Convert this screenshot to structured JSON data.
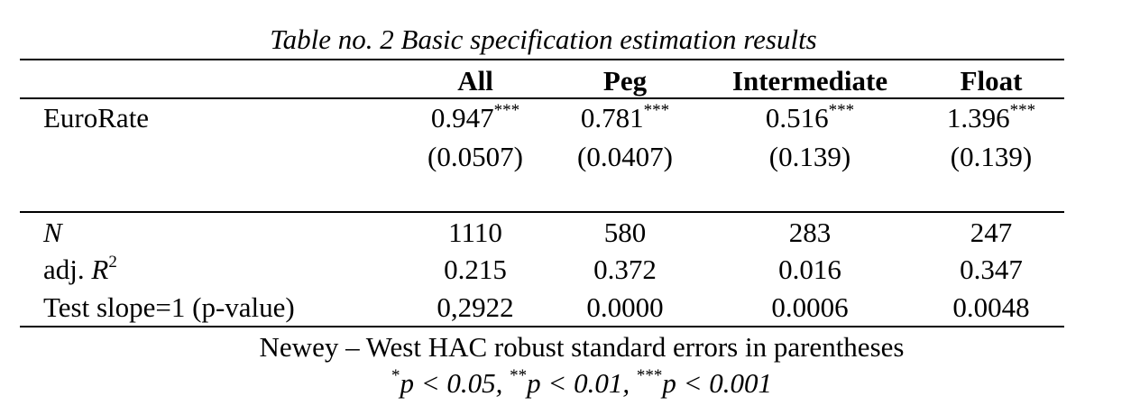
{
  "caption": {
    "table_no": "Table no. 2",
    "title": "Basic specification estimation results"
  },
  "columns": [
    "All",
    "Peg",
    "Intermediate",
    "Float"
  ],
  "rows": {
    "eurorate": {
      "label": "EuroRate",
      "coefs": [
        "0.947",
        "0.781",
        "0.516",
        "1.396"
      ],
      "stars": [
        "***",
        "***",
        "***",
        "***"
      ],
      "ses": [
        "(0.0507)",
        "(0.0407)",
        "(0.139)",
        "(0.139)"
      ]
    },
    "n": {
      "label": "N",
      "values": [
        "1110",
        "580",
        "283",
        "247"
      ]
    },
    "adjr2": {
      "label": "adj.",
      "label_symbol": "R",
      "label_sup": "2",
      "values": [
        "0.215",
        "0.372",
        "0.016",
        "0.347"
      ]
    },
    "test": {
      "label": "Test slope=1 (p-value)",
      "values": [
        "0,2922",
        "0.0000",
        "0.0006",
        "0.0048"
      ]
    }
  },
  "notes": {
    "line1": "Newey – West HAC robust standard errors in parentheses",
    "sig1_stars": "*",
    "sig1_text": "p < 0.05,",
    "sig2_stars": "**",
    "sig2_text": "p < 0.01,",
    "sig3_stars": "***",
    "sig3_text": "p < 0.001"
  }
}
